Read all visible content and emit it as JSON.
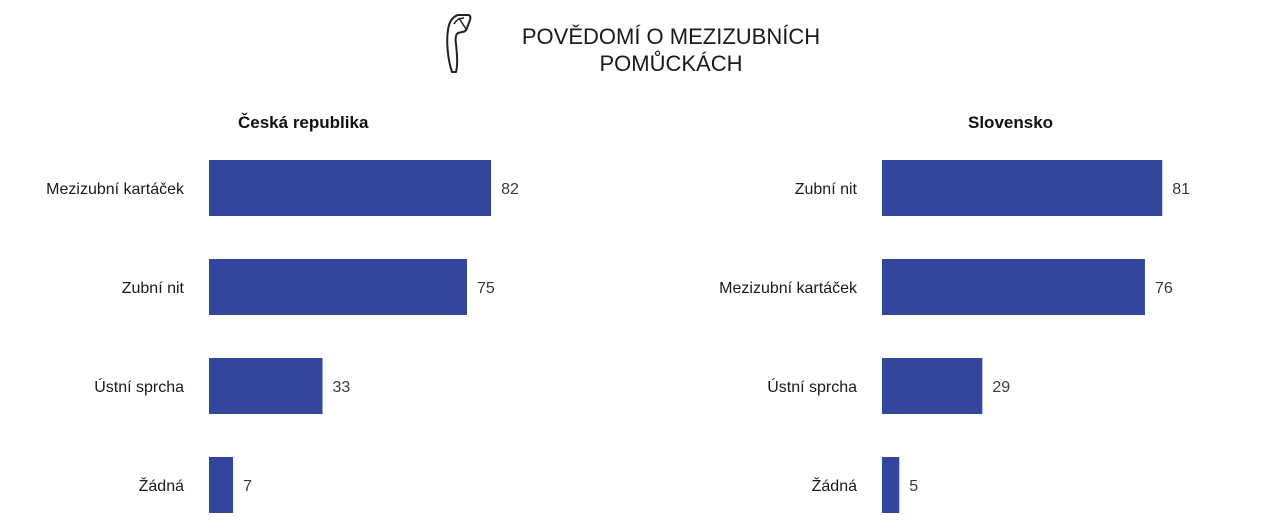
{
  "title": {
    "line1": "POVĚDOMÍ O MEZIZUBNÍCH",
    "line2": "POMŮCKÁCH",
    "icon": "dental-floss-pick-icon"
  },
  "colors": {
    "bar": "#32479b",
    "text": "#1a1a1a",
    "value": "#3a3a3a"
  },
  "chart_data": [
    {
      "type": "bar",
      "orientation": "horizontal",
      "subtitle": "Česká republika",
      "categories": [
        "Mezizubní kartáček",
        "Zubní nit",
        "Ústní sprcha",
        "Žádná"
      ],
      "values": [
        82,
        75,
        33,
        7
      ],
      "xlim": [
        0,
        100
      ],
      "grid": false,
      "legend": "none"
    },
    {
      "type": "bar",
      "orientation": "horizontal",
      "subtitle": "Slovensko",
      "categories": [
        "Zubní nit",
        "Mezizubní kartáček",
        "Ústní sprcha",
        "Žádná"
      ],
      "values": [
        81,
        76,
        29,
        5
      ],
      "xlim": [
        0,
        100
      ],
      "grid": false,
      "legend": "none"
    }
  ]
}
